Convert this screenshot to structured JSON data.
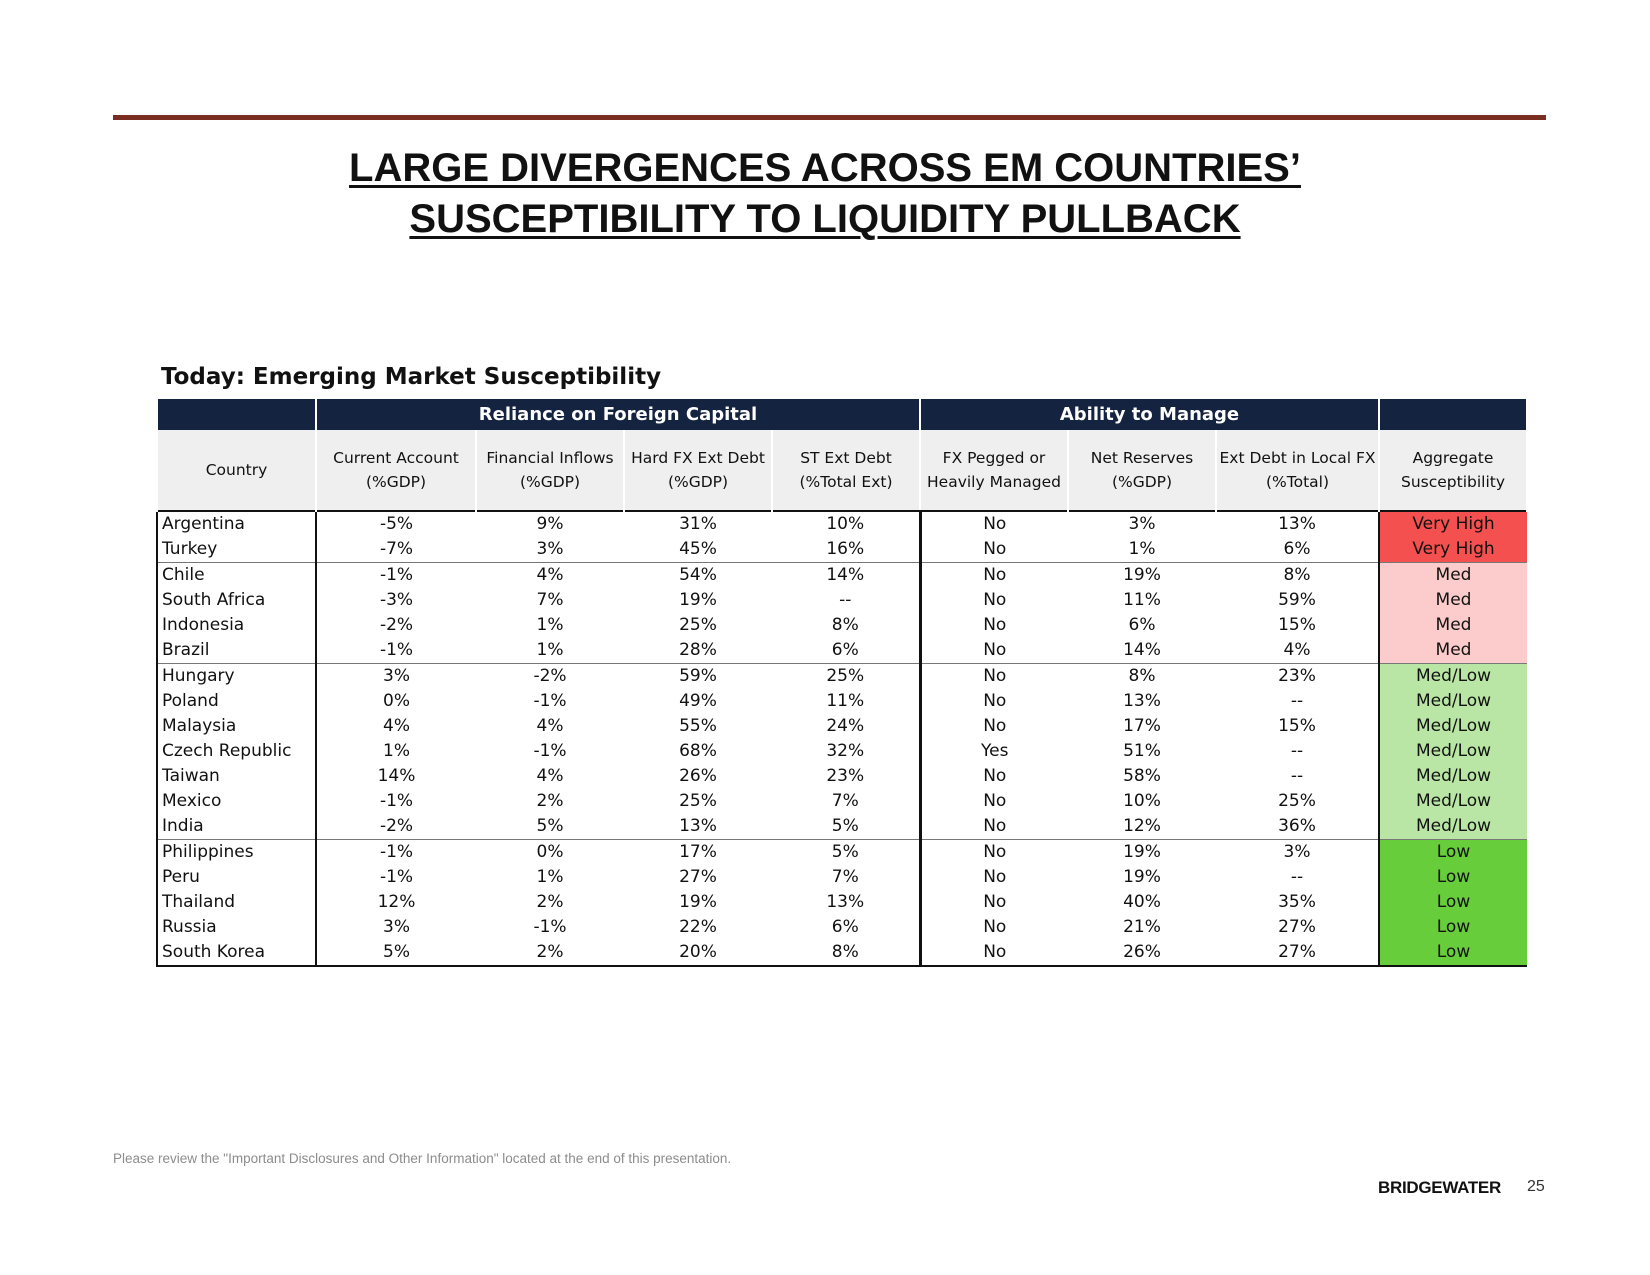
{
  "slide": {
    "title_line1": "LARGE DIVERGENCES ACROSS EM COUNTRIES’",
    "title_line2": "SUSCEPTIBILITY TO LIQUIDITY PULLBACK",
    "table_title": "Today: Emerging Market Susceptibility",
    "disclaimer": "Please review the \"Important Disclosures and Other Information\" located at the end of this presentation.",
    "logo_text": "BRIDGEWATER",
    "page_number": "25"
  },
  "table": {
    "group_headers": {
      "reliance": "Reliance on Foreign Capital",
      "ability": "Ability to Manage"
    },
    "columns": [
      [
        "Country"
      ],
      [
        "Current Account",
        "(%GDP)"
      ],
      [
        "Financial Inflows",
        "(%GDP)"
      ],
      [
        "Hard FX Ext Debt",
        "(%GDP)"
      ],
      [
        "ST Ext Debt",
        "(%Total Ext)"
      ],
      [
        "FX Pegged or",
        "Heavily Managed"
      ],
      [
        "Net Reserves",
        "(%GDP)"
      ],
      [
        "Ext Debt in Local FX",
        "(%Total)"
      ],
      [
        "Aggregate",
        "Susceptibility"
      ]
    ],
    "colors": {
      "Very High": "#f4504f",
      "Med": "#fccbcb",
      "Med/Low": "#b9e6a4",
      "Low": "#68cd3b"
    },
    "rows": [
      [
        "Argentina",
        "-5%",
        "9%",
        "31%",
        "10%",
        "No",
        "3%",
        "13%",
        "Very High"
      ],
      [
        "Turkey",
        "-7%",
        "3%",
        "45%",
        "16%",
        "No",
        "1%",
        "6%",
        "Very High"
      ],
      [
        "Chile",
        "-1%",
        "4%",
        "54%",
        "14%",
        "No",
        "19%",
        "8%",
        "Med"
      ],
      [
        "South Africa",
        "-3%",
        "7%",
        "19%",
        "--",
        "No",
        "11%",
        "59%",
        "Med"
      ],
      [
        "Indonesia",
        "-2%",
        "1%",
        "25%",
        "8%",
        "No",
        "6%",
        "15%",
        "Med"
      ],
      [
        "Brazil",
        "-1%",
        "1%",
        "28%",
        "6%",
        "No",
        "14%",
        "4%",
        "Med"
      ],
      [
        "Hungary",
        "3%",
        "-2%",
        "59%",
        "25%",
        "No",
        "8%",
        "23%",
        "Med/Low"
      ],
      [
        "Poland",
        "0%",
        "-1%",
        "49%",
        "11%",
        "No",
        "13%",
        "--",
        "Med/Low"
      ],
      [
        "Malaysia",
        "4%",
        "4%",
        "55%",
        "24%",
        "No",
        "17%",
        "15%",
        "Med/Low"
      ],
      [
        "Czech Republic",
        "1%",
        "-1%",
        "68%",
        "32%",
        "Yes",
        "51%",
        "--",
        "Med/Low"
      ],
      [
        "Taiwan",
        "14%",
        "4%",
        "26%",
        "23%",
        "No",
        "58%",
        "--",
        "Med/Low"
      ],
      [
        "Mexico",
        "-1%",
        "2%",
        "25%",
        "7%",
        "No",
        "10%",
        "25%",
        "Med/Low"
      ],
      [
        "India",
        "-2%",
        "5%",
        "13%",
        "5%",
        "No",
        "12%",
        "36%",
        "Med/Low"
      ],
      [
        "Philippines",
        "-1%",
        "0%",
        "17%",
        "5%",
        "No",
        "19%",
        "3%",
        "Low"
      ],
      [
        "Peru",
        "-1%",
        "1%",
        "27%",
        "7%",
        "No",
        "19%",
        "--",
        "Low"
      ],
      [
        "Thailand",
        "12%",
        "2%",
        "19%",
        "13%",
        "No",
        "40%",
        "35%",
        "Low"
      ],
      [
        "Russia",
        "3%",
        "-1%",
        "22%",
        "6%",
        "No",
        "21%",
        "27%",
        "Low"
      ],
      [
        "South Korea",
        "5%",
        "2%",
        "20%",
        "8%",
        "No",
        "26%",
        "27%",
        "Low"
      ]
    ]
  }
}
